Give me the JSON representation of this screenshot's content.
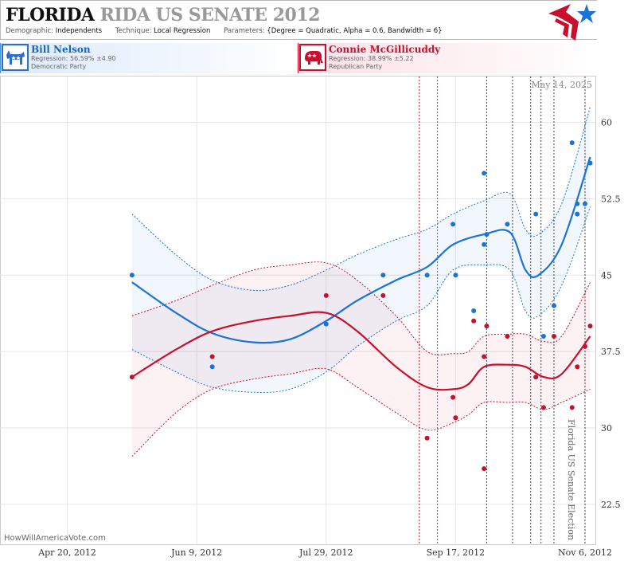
{
  "header": {
    "title_main": "FLORIDA",
    "title_rest": "RIDA US SENATE 2012",
    "demographic_label": "Demographic:",
    "demographic_value": "Independents",
    "technique_label": "Technique:",
    "technique_value": "Local Regression",
    "parameters_label": "Parameters:",
    "parameters_value": "{Degree = Quadratic, Alpha = 0.6, Bandwidth = 6}"
  },
  "candidates": {
    "dem": {
      "name": "Bill Nelson",
      "regression": "Regression: 56.59% ±4.90",
      "party": "Democratic Party",
      "color": "#1a73d9",
      "icon": "donkey-icon"
    },
    "rep": {
      "name": "Connie McGillicuddy",
      "regression": "Regression: 38.99% ±5.22",
      "party": "Republican Party",
      "color": "#c8102e",
      "icon": "elephant-icon"
    }
  },
  "annotations": {
    "date_stamp": "May 14, 2025",
    "election_label": "Florida US Senate Election",
    "credit": "HowWillAmericaVote.com"
  },
  "chart_data": {
    "type": "scatter",
    "x_type": "date",
    "xlim": [
      "2012-03-25",
      "2012-11-10"
    ],
    "ylim": [
      18.5,
      64.5
    ],
    "x_ticks": [
      {
        "date": "2012-04-20",
        "label": "Apr 20, 2012"
      },
      {
        "date": "2012-06-09",
        "label": "Jun 9, 2012"
      },
      {
        "date": "2012-07-29",
        "label": "Jul 29, 2012"
      },
      {
        "date": "2012-09-17",
        "label": "Sep 17, 2012"
      },
      {
        "date": "2012-11-06",
        "label": "Nov 6, 2012"
      }
    ],
    "y_ticks": [
      22.5,
      30,
      37.5,
      45,
      52.5,
      60
    ],
    "grid": true,
    "event_lines": [
      {
        "date": "2012-09-03",
        "color": "#c8102e"
      },
      {
        "date": "2012-09-10",
        "color": "#1a73d9"
      },
      {
        "date": "2012-09-29",
        "color": "#444"
      },
      {
        "date": "2012-10-09",
        "color": "#444"
      },
      {
        "date": "2012-10-16",
        "color": "#444"
      },
      {
        "date": "2012-10-20",
        "color": "#444"
      },
      {
        "date": "2012-10-25",
        "color": "#444"
      },
      {
        "date": "2012-11-06",
        "color": "#444"
      }
    ],
    "series": [
      {
        "name": "Bill Nelson",
        "color": "#1a73d9",
        "points": [
          [
            "2012-05-15",
            45
          ],
          [
            "2012-06-15",
            36
          ],
          [
            "2012-07-29",
            40.2
          ],
          [
            "2012-08-20",
            45
          ],
          [
            "2012-09-06",
            45
          ],
          [
            "2012-09-16",
            50
          ],
          [
            "2012-09-17",
            45
          ],
          [
            "2012-09-24",
            41.5
          ],
          [
            "2012-09-28",
            55
          ],
          [
            "2012-09-28",
            48
          ],
          [
            "2012-09-29",
            49
          ],
          [
            "2012-10-07",
            50
          ],
          [
            "2012-10-18",
            51
          ],
          [
            "2012-10-21",
            39
          ],
          [
            "2012-10-25",
            42
          ],
          [
            "2012-11-01",
            58
          ],
          [
            "2012-11-03",
            52
          ],
          [
            "2012-11-03",
            51
          ],
          [
            "2012-11-06",
            52
          ],
          [
            "2012-11-08",
            56
          ]
        ],
        "fit": [
          [
            "2012-05-15",
            44.3
          ],
          [
            "2012-06-01",
            41.3
          ],
          [
            "2012-06-15",
            39.3
          ],
          [
            "2012-07-01",
            38.4
          ],
          [
            "2012-07-15",
            38.7
          ],
          [
            "2012-07-29",
            40.5
          ],
          [
            "2012-08-10",
            42.5
          ],
          [
            "2012-08-25",
            44.5
          ],
          [
            "2012-09-06",
            45.8
          ],
          [
            "2012-09-16",
            48
          ],
          [
            "2012-09-28",
            49
          ],
          [
            "2012-10-08",
            49.2
          ],
          [
            "2012-10-14",
            45.5
          ],
          [
            "2012-10-19",
            45
          ],
          [
            "2012-10-28",
            48
          ],
          [
            "2012-11-08",
            56.6
          ]
        ],
        "upper": [
          [
            "2012-05-15",
            51
          ],
          [
            "2012-06-01",
            47
          ],
          [
            "2012-06-15",
            44.5
          ],
          [
            "2012-07-01",
            43.5
          ],
          [
            "2012-07-15",
            44
          ],
          [
            "2012-07-29",
            45.5
          ],
          [
            "2012-08-10",
            47
          ],
          [
            "2012-08-25",
            48.5
          ],
          [
            "2012-09-06",
            49.5
          ],
          [
            "2012-09-16",
            51
          ],
          [
            "2012-09-28",
            52.3
          ],
          [
            "2012-10-08",
            53
          ],
          [
            "2012-10-14",
            49.5
          ],
          [
            "2012-10-19",
            49
          ],
          [
            "2012-10-28",
            52
          ],
          [
            "2012-11-08",
            61.5
          ]
        ],
        "lower": [
          [
            "2012-05-15",
            37.7
          ],
          [
            "2012-06-01",
            35.5
          ],
          [
            "2012-06-15",
            34
          ],
          [
            "2012-07-01",
            33.5
          ],
          [
            "2012-07-15",
            33.8
          ],
          [
            "2012-07-29",
            35.5
          ],
          [
            "2012-08-10",
            38
          ],
          [
            "2012-08-25",
            40.5
          ],
          [
            "2012-09-06",
            42
          ],
          [
            "2012-09-16",
            45.5
          ],
          [
            "2012-09-28",
            46
          ],
          [
            "2012-10-08",
            45.5
          ],
          [
            "2012-10-14",
            41.5
          ],
          [
            "2012-10-19",
            41
          ],
          [
            "2012-10-28",
            44
          ],
          [
            "2012-11-08",
            51.7
          ]
        ]
      },
      {
        "name": "Connie McGillicuddy",
        "color": "#c8102e",
        "points": [
          [
            "2012-05-15",
            35
          ],
          [
            "2012-06-15",
            37
          ],
          [
            "2012-07-29",
            43
          ],
          [
            "2012-08-20",
            43
          ],
          [
            "2012-09-06",
            29
          ],
          [
            "2012-09-16",
            33
          ],
          [
            "2012-09-17",
            31
          ],
          [
            "2012-09-24",
            40.5
          ],
          [
            "2012-09-28",
            37
          ],
          [
            "2012-09-28",
            26
          ],
          [
            "2012-09-29",
            40
          ],
          [
            "2012-10-07",
            39
          ],
          [
            "2012-10-18",
            35
          ],
          [
            "2012-10-21",
            32
          ],
          [
            "2012-10-25",
            39
          ],
          [
            "2012-11-01",
            32
          ],
          [
            "2012-11-03",
            36
          ],
          [
            "2012-11-06",
            38
          ],
          [
            "2012-11-08",
            40
          ]
        ],
        "fit": [
          [
            "2012-05-15",
            35
          ],
          [
            "2012-06-01",
            37.7
          ],
          [
            "2012-06-15",
            39.5
          ],
          [
            "2012-07-01",
            40.5
          ],
          [
            "2012-07-15",
            41
          ],
          [
            "2012-07-29",
            41.3
          ],
          [
            "2012-08-10",
            39.5
          ],
          [
            "2012-08-25",
            36
          ],
          [
            "2012-09-06",
            34
          ],
          [
            "2012-09-16",
            33.8
          ],
          [
            "2012-09-22",
            34.3
          ],
          [
            "2012-09-28",
            36
          ],
          [
            "2012-10-07",
            36.2
          ],
          [
            "2012-10-14",
            36
          ],
          [
            "2012-10-21",
            35
          ],
          [
            "2012-10-28",
            35.3
          ],
          [
            "2012-11-08",
            39
          ]
        ],
        "upper": [
          [
            "2012-05-15",
            41
          ],
          [
            "2012-06-01",
            42.5
          ],
          [
            "2012-06-15",
            44
          ],
          [
            "2012-07-01",
            45.5
          ],
          [
            "2012-07-15",
            46
          ],
          [
            "2012-07-29",
            46.2
          ],
          [
            "2012-08-10",
            44.5
          ],
          [
            "2012-08-25",
            41
          ],
          [
            "2012-09-06",
            37.5
          ],
          [
            "2012-09-16",
            37.3
          ],
          [
            "2012-09-22",
            37.5
          ],
          [
            "2012-09-28",
            39
          ],
          [
            "2012-10-07",
            39.2
          ],
          [
            "2012-10-14",
            39.2
          ],
          [
            "2012-10-21",
            38.5
          ],
          [
            "2012-10-28",
            39
          ],
          [
            "2012-11-08",
            44.3
          ]
        ],
        "lower": [
          [
            "2012-05-15",
            27.2
          ],
          [
            "2012-06-01",
            31.5
          ],
          [
            "2012-06-15",
            33.8
          ],
          [
            "2012-07-01",
            34.8
          ],
          [
            "2012-07-15",
            35.3
          ],
          [
            "2012-07-29",
            35.8
          ],
          [
            "2012-08-10",
            34
          ],
          [
            "2012-08-25",
            31.5
          ],
          [
            "2012-09-06",
            29.8
          ],
          [
            "2012-09-16",
            30.5
          ],
          [
            "2012-09-22",
            31.3
          ],
          [
            "2012-09-28",
            32.5
          ],
          [
            "2012-10-07",
            32.5
          ],
          [
            "2012-10-14",
            32.5
          ],
          [
            "2012-10-21",
            31.8
          ],
          [
            "2012-10-28",
            32.5
          ],
          [
            "2012-11-08",
            33.8
          ]
        ]
      }
    ]
  }
}
